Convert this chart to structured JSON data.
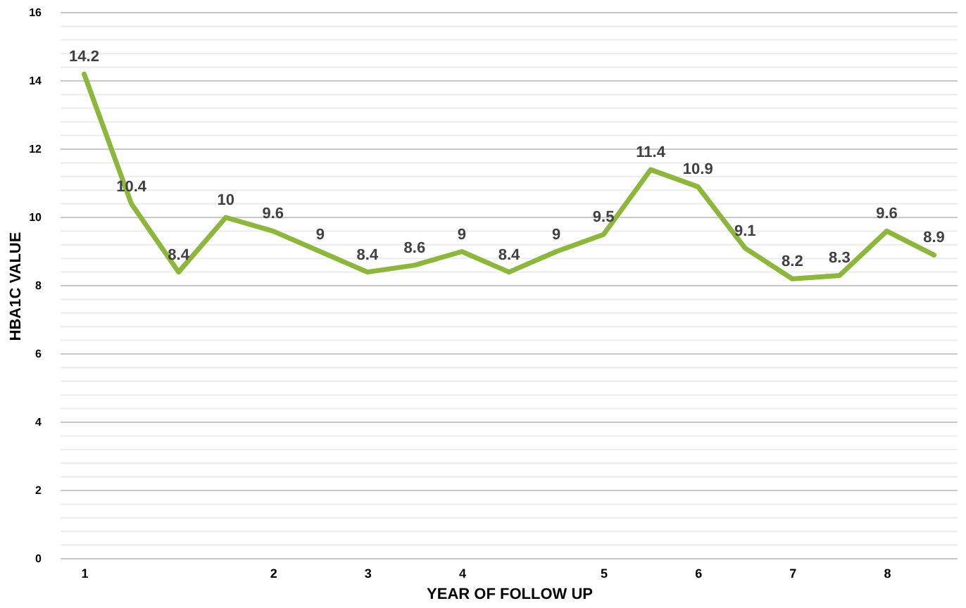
{
  "chart_data": {
    "type": "line",
    "xlabel": "YEAR OF FOLLOW UP",
    "ylabel": "HBA1C VALUE",
    "categories": [
      "1",
      null,
      null,
      null,
      "2",
      null,
      "3",
      null,
      "4",
      null,
      null,
      "5",
      null,
      "6",
      null,
      "7",
      null,
      "8",
      null
    ],
    "series": [
      {
        "color": "#8db63c",
        "values": [
          14.2,
          10.4,
          8.4,
          10,
          9.6,
          9,
          8.4,
          8.6,
          9,
          8.4,
          9,
          9.5,
          11.4,
          10.9,
          9.1,
          8.2,
          8.3,
          9.6,
          8.9
        ]
      }
    ],
    "ylim": [
      0,
      16
    ],
    "yticks": [
      0,
      {
        "value": 0.4,
        "label": null
      },
      {
        "value": 0.8,
        "label": null
      },
      {
        "value": 1.2,
        "label": null
      },
      {
        "value": 1.6,
        "label": null
      },
      2,
      {
        "value": 2.4,
        "label": null
      },
      {
        "value": 2.8,
        "label": null
      },
      {
        "value": 3.2,
        "label": null
      },
      {
        "value": 3.6,
        "label": null
      },
      4,
      {
        "value": 4.4,
        "label": null
      },
      {
        "value": 4.8,
        "label": null
      },
      {
        "value": 5.2,
        "label": null
      },
      {
        "value": 5.6,
        "label": null
      },
      6,
      {
        "value": 6.4,
        "label": null
      },
      {
        "value": 6.8,
        "label": null
      },
      {
        "value": 7.2,
        "label": null
      },
      {
        "value": 7.6,
        "label": null
      },
      8,
      {
        "value": 8.4,
        "label": null
      },
      {
        "value": 8.8,
        "label": null
      },
      {
        "value": 9.2,
        "label": null
      },
      {
        "value": 9.6,
        "label": null
      },
      10,
      {
        "value": 10.4,
        "label": null
      },
      {
        "value": 10.8,
        "label": null
      },
      {
        "value": 11.2,
        "label": null
      },
      {
        "value": 11.6,
        "label": null
      },
      12,
      {
        "value": 12.4,
        "label": null
      },
      {
        "value": 12.8,
        "label": null
      },
      {
        "value": 13.2,
        "label": null
      },
      {
        "value": 13.6,
        "label": null
      },
      14,
      {
        "value": 14.4,
        "label": null
      },
      {
        "value": 14.8,
        "label": null
      },
      {
        "value": 15.2,
        "label": null
      },
      {
        "value": 15.6,
        "label": null
      },
      16
    ],
    "grid": "y",
    "marker": "none",
    "line_style": "solid",
    "data_labels": true
  }
}
